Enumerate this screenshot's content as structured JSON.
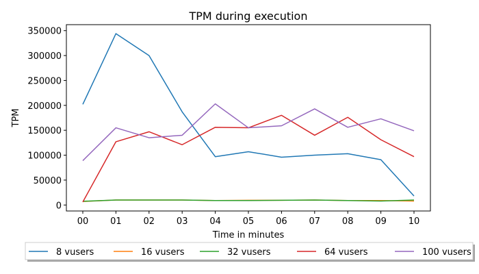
{
  "chart_data": {
    "type": "line",
    "title": "TPM during execution",
    "xlabel": "Time in minutes",
    "ylabel": "TPM",
    "categories": [
      "00",
      "01",
      "02",
      "03",
      "04",
      "05",
      "06",
      "07",
      "08",
      "09",
      "10"
    ],
    "y_ticks": [
      "0",
      "50000",
      "100000",
      "150000",
      "200000",
      "250000",
      "300000",
      "350000"
    ],
    "ylim": [
      -12000,
      362000
    ],
    "grid": false,
    "legend_position": "bottom",
    "series": [
      {
        "name": "8 vusers",
        "color": "#1f77b4",
        "values": [
          202000,
          344000,
          300000,
          187000,
          97000,
          107000,
          96000,
          100000,
          103000,
          91000,
          18000
        ]
      },
      {
        "name": "16 vusers",
        "color": "#ff7f0e",
        "values": [
          7000,
          10000,
          10000,
          10000,
          9000,
          9500,
          9500,
          10000,
          9000,
          9000,
          8000
        ]
      },
      {
        "name": "32 vusers",
        "color": "#2ca02c",
        "values": [
          7500,
          10000,
          10000,
          10000,
          9000,
          9000,
          9500,
          10000,
          9000,
          8000,
          10000
        ]
      },
      {
        "name": "64 vusers",
        "color": "#d62728",
        "values": [
          6000,
          127000,
          147000,
          121000,
          156000,
          155000,
          180000,
          140000,
          176000,
          131000,
          97000
        ]
      },
      {
        "name": "100 vusers",
        "color": "#9467bd",
        "values": [
          89000,
          155000,
          135000,
          140000,
          203000,
          155000,
          159000,
          193000,
          156000,
          173000,
          149000
        ]
      }
    ]
  }
}
